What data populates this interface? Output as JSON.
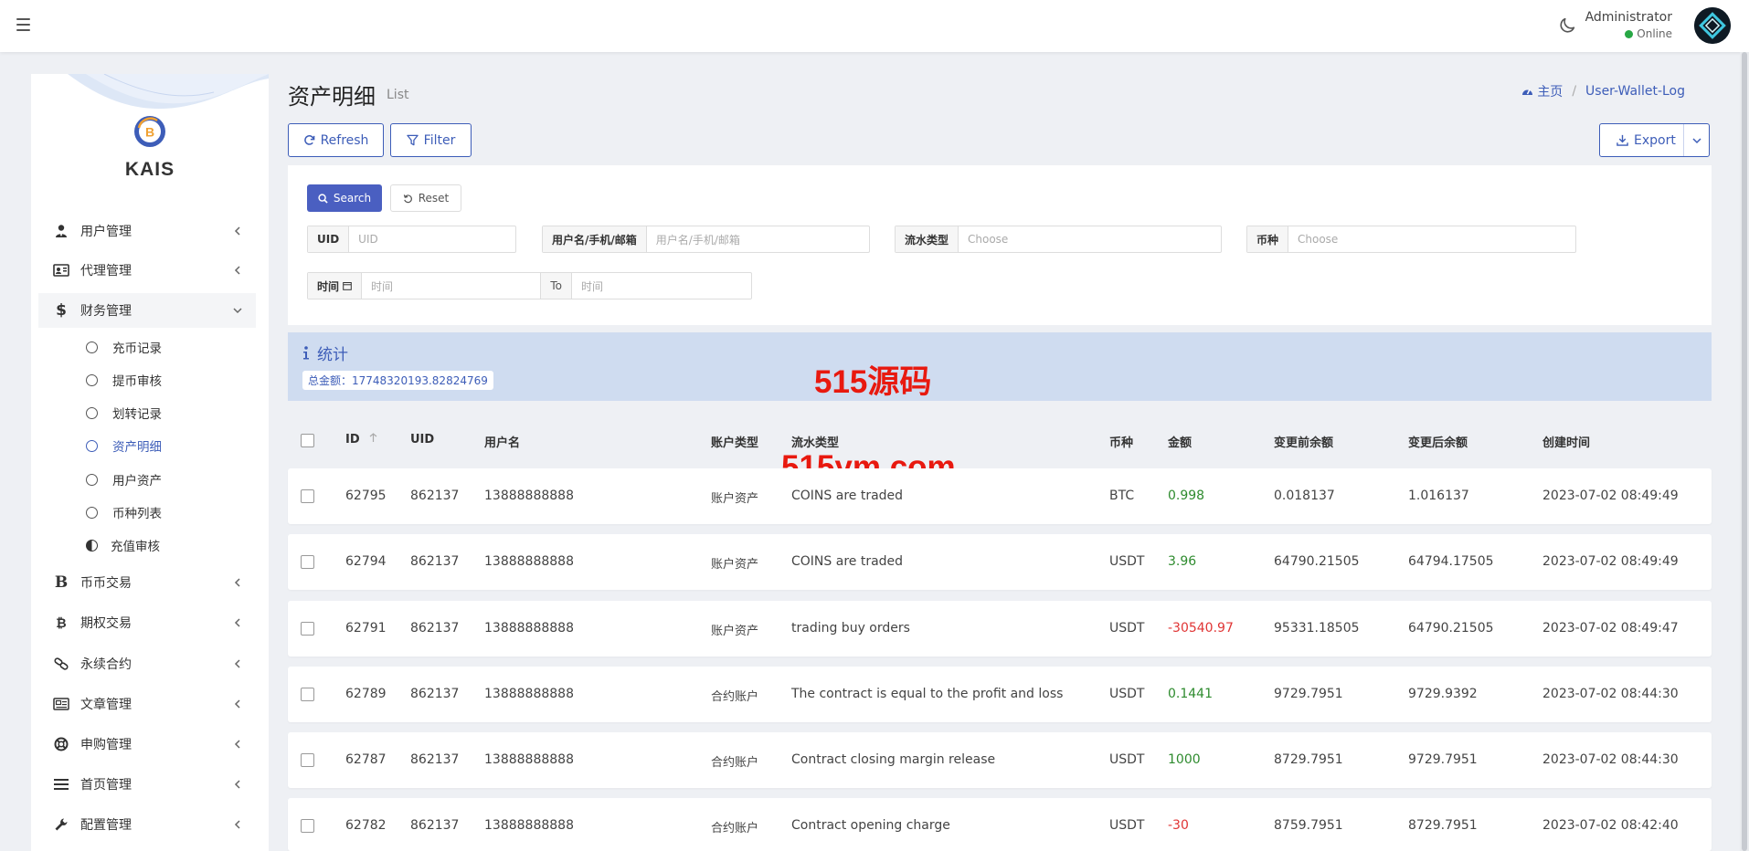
{
  "header": {
    "user_name": "Administrator",
    "user_status": "Online"
  },
  "sidebar": {
    "brand": "KAIS",
    "menu": [
      {
        "label": "用户管理",
        "icon": "user-tie-icon"
      },
      {
        "label": "代理管理",
        "icon": "id-card-icon"
      },
      {
        "label": "财务管理",
        "icon": "dollar-icon"
      }
    ],
    "finance_sub": [
      {
        "label": "充币记录"
      },
      {
        "label": "提币审核"
      },
      {
        "label": "划转记录"
      },
      {
        "label": "资产明细"
      },
      {
        "label": "用户资产"
      },
      {
        "label": "币种列表"
      },
      {
        "label": "充值审核"
      }
    ],
    "menu_after": [
      {
        "label": "币币交易",
        "icon": "bold-b-icon"
      },
      {
        "label": "期权交易",
        "icon": "bitcoin-icon"
      },
      {
        "label": "永续合约",
        "icon": "link-icon"
      },
      {
        "label": "文章管理",
        "icon": "newspaper-icon"
      },
      {
        "label": "申购管理",
        "icon": "lifebuoy-icon"
      },
      {
        "label": "首页管理",
        "icon": "list-icon"
      },
      {
        "label": "配置管理",
        "icon": "wrench-icon"
      }
    ]
  },
  "page": {
    "title": "资产明细",
    "subtitle": "List",
    "breadcrumb_home": "主页",
    "breadcrumb_current": "User-Wallet-Log",
    "refresh_label": "Refresh",
    "filter_label": "Filter",
    "export_label": "Export"
  },
  "filter": {
    "search_label": "Search",
    "reset_label": "Reset",
    "uid_label": "UID",
    "uid_placeholder": "UID",
    "user_label": "用户名/手机/邮箱",
    "user_placeholder": "用户名/手机/邮箱",
    "flow_label": "流水类型",
    "flow_placeholder": "Choose",
    "coin_label": "币种",
    "coin_placeholder": "Choose",
    "time_label": "时间",
    "time_start_placeholder": "时间",
    "time_to_label": "To",
    "time_end_placeholder": "时间"
  },
  "stats": {
    "title": "统计",
    "total_text": "总金额：17748320193.82824769"
  },
  "watermark": {
    "line1": "515源码",
    "line2": "515ym.com"
  },
  "table": {
    "columns": [
      "ID",
      "UID",
      "用户名",
      "账户类型",
      "流水类型",
      "币种",
      "金额",
      "变更前余额",
      "变更后余额",
      "创建时间"
    ],
    "rows": [
      {
        "id": "62795",
        "uid": "862137",
        "username": "13888888888",
        "account_type": "账户资产",
        "flow_type": "COINS are traded",
        "coin": "BTC",
        "amount": "0.998",
        "before": "0.018137",
        "after": "1.016137",
        "created": "2023-07-02 08:49:49",
        "sign": "pos"
      },
      {
        "id": "62794",
        "uid": "862137",
        "username": "13888888888",
        "account_type": "账户资产",
        "flow_type": "COINS are traded",
        "coin": "USDT",
        "amount": "3.96",
        "before": "64790.21505",
        "after": "64794.17505",
        "created": "2023-07-02 08:49:49",
        "sign": "pos"
      },
      {
        "id": "62791",
        "uid": "862137",
        "username": "13888888888",
        "account_type": "账户资产",
        "flow_type": "trading buy orders",
        "coin": "USDT",
        "amount": "-30540.97",
        "before": "95331.18505",
        "after": "64790.21505",
        "created": "2023-07-02 08:49:47",
        "sign": "neg"
      },
      {
        "id": "62789",
        "uid": "862137",
        "username": "13888888888",
        "account_type": "合约账户",
        "flow_type": "The contract is equal to the profit and loss",
        "coin": "USDT",
        "amount": "0.1441",
        "before": "9729.7951",
        "after": "9729.9392",
        "created": "2023-07-02 08:44:30",
        "sign": "pos"
      },
      {
        "id": "62787",
        "uid": "862137",
        "username": "13888888888",
        "account_type": "合约账户",
        "flow_type": "Contract closing margin release",
        "coin": "USDT",
        "amount": "1000",
        "before": "8729.7951",
        "after": "9729.7951",
        "created": "2023-07-02 08:44:30",
        "sign": "pos"
      },
      {
        "id": "62782",
        "uid": "862137",
        "username": "13888888888",
        "account_type": "合约账户",
        "flow_type": "Contract opening charge",
        "coin": "USDT",
        "amount": "-30",
        "before": "8759.7951",
        "after": "8729.7951",
        "created": "2023-07-02 08:42:40",
        "sign": "neg"
      }
    ]
  },
  "colors": {
    "accent": "#3d5db8",
    "positive": "#2e8b2e",
    "negative": "#e03535",
    "online": "#28a745"
  }
}
